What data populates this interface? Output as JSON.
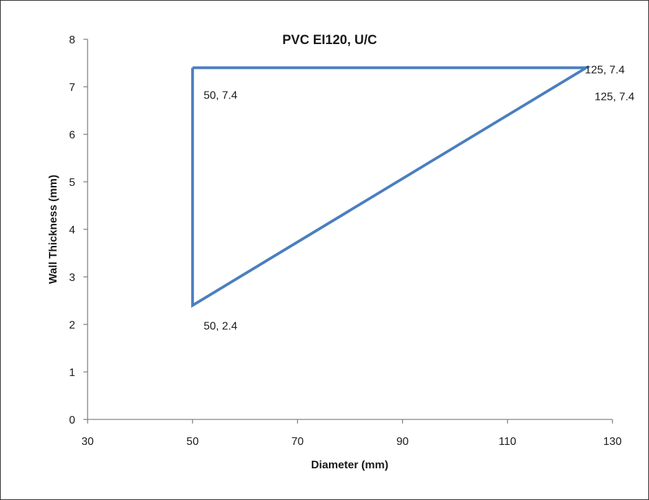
{
  "chart_data": {
    "type": "scatter",
    "title": "PVC EI120, U/C",
    "xlabel": "Diameter (mm)",
    "ylabel": "Wall Thickness (mm)",
    "xlim": [
      30,
      130
    ],
    "ylim": [
      0,
      8
    ],
    "xticks": [
      30,
      50,
      70,
      90,
      110,
      130
    ],
    "yticks": [
      0,
      1,
      2,
      3,
      4,
      5,
      6,
      7,
      8
    ],
    "grid": false,
    "legend": "none",
    "series": [
      {
        "color": "#4a7fbf",
        "points": [
          {
            "x": 50,
            "y": 7.4,
            "label": "50, 7.4"
          },
          {
            "x": 125,
            "y": 7.4,
            "label": "125, 7.4"
          },
          {
            "x": 125,
            "y": 7.4,
            "label": "125, 7.4"
          },
          {
            "x": 50,
            "y": 2.4,
            "label": "50, 2.4"
          },
          {
            "x": 50,
            "y": 7.4
          }
        ]
      }
    ]
  }
}
